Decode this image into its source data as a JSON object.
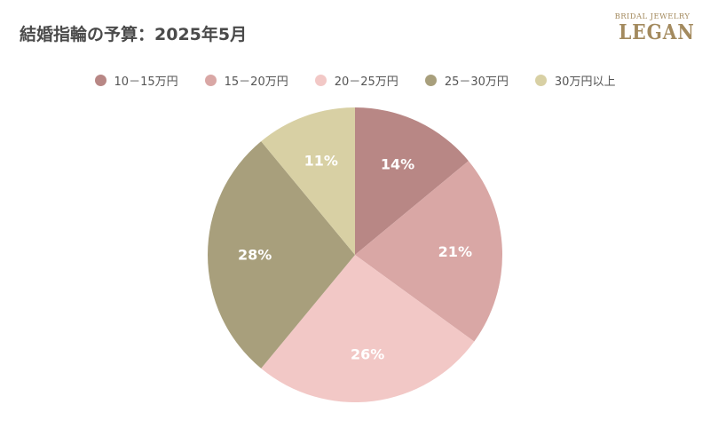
{
  "title": "結婚指輪の予算：2025年5月",
  "logo": {
    "top_text": "BRIDAL JEWELRY",
    "main_text": "LEGAN"
  },
  "chart_data": {
    "type": "pie",
    "title": "結婚指輪の予算：2025年5月",
    "start_angle_deg": 0,
    "direction": "clockwise",
    "legend_position": "top",
    "categories": [
      "10－15万円",
      "15－20万円",
      "20－25万円",
      "25－30万円",
      "30万円以上"
    ],
    "values": [
      14,
      21,
      26,
      28,
      11
    ],
    "labels": [
      "14%",
      "21%",
      "26%",
      "28%",
      "11%"
    ],
    "colors": [
      "#b88785",
      "#d9a7a5",
      "#f2c8c6",
      "#a89f7c",
      "#d8d0a4"
    ]
  }
}
